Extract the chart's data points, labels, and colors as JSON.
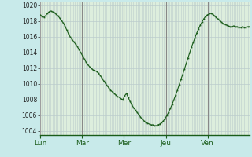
{
  "bg_color": "#c8eaea",
  "plot_bg_color": "#ddeedd",
  "grid_color": "#bbcccc",
  "line_color": "#1a5c1a",
  "marker_color": "#1a5c1a",
  "ylim": [
    1003.5,
    1020.5
  ],
  "yticks": [
    1004,
    1006,
    1008,
    1010,
    1012,
    1014,
    1016,
    1018,
    1020
  ],
  "day_labels": [
    "Lun",
    "Mar",
    "Mer",
    "Jeu",
    "Ven"
  ],
  "day_positions": [
    0,
    24,
    48,
    72,
    96
  ],
  "total_hours": 120,
  "pressure_data": [
    1018.8,
    1018.6,
    1018.5,
    1018.7,
    1019.0,
    1019.2,
    1019.3,
    1019.2,
    1019.1,
    1018.9,
    1018.7,
    1018.4,
    1018.1,
    1017.8,
    1017.4,
    1016.9,
    1016.4,
    1016.0,
    1015.7,
    1015.4,
    1015.1,
    1014.8,
    1014.4,
    1014.0,
    1013.6,
    1013.2,
    1012.8,
    1012.5,
    1012.2,
    1012.0,
    1011.8,
    1011.7,
    1011.6,
    1011.4,
    1011.1,
    1010.8,
    1010.4,
    1010.1,
    1009.8,
    1009.5,
    1009.2,
    1009.0,
    1008.8,
    1008.6,
    1008.4,
    1008.3,
    1008.1,
    1008.0,
    1008.5,
    1008.8,
    1008.3,
    1007.8,
    1007.4,
    1007.0,
    1006.7,
    1006.4,
    1006.1,
    1005.8,
    1005.5,
    1005.3,
    1005.1,
    1005.0,
    1004.9,
    1004.8,
    1004.8,
    1004.7,
    1004.7,
    1004.8,
    1004.9,
    1005.1,
    1005.3,
    1005.6,
    1006.0,
    1006.4,
    1006.9,
    1007.4,
    1008.0,
    1008.6,
    1009.2,
    1009.9,
    1010.6,
    1011.2,
    1011.9,
    1012.6,
    1013.3,
    1014.0,
    1014.7,
    1015.3,
    1015.9,
    1016.5,
    1017.0,
    1017.5,
    1017.9,
    1018.3,
    1018.6,
    1018.8,
    1018.9,
    1019.0,
    1018.9,
    1018.7,
    1018.5,
    1018.3,
    1018.1,
    1017.9,
    1017.7,
    1017.6,
    1017.5,
    1017.4,
    1017.3,
    1017.3,
    1017.4,
    1017.3,
    1017.3,
    1017.2,
    1017.2,
    1017.3,
    1017.2,
    1017.2,
    1017.3,
    1017.3
  ]
}
